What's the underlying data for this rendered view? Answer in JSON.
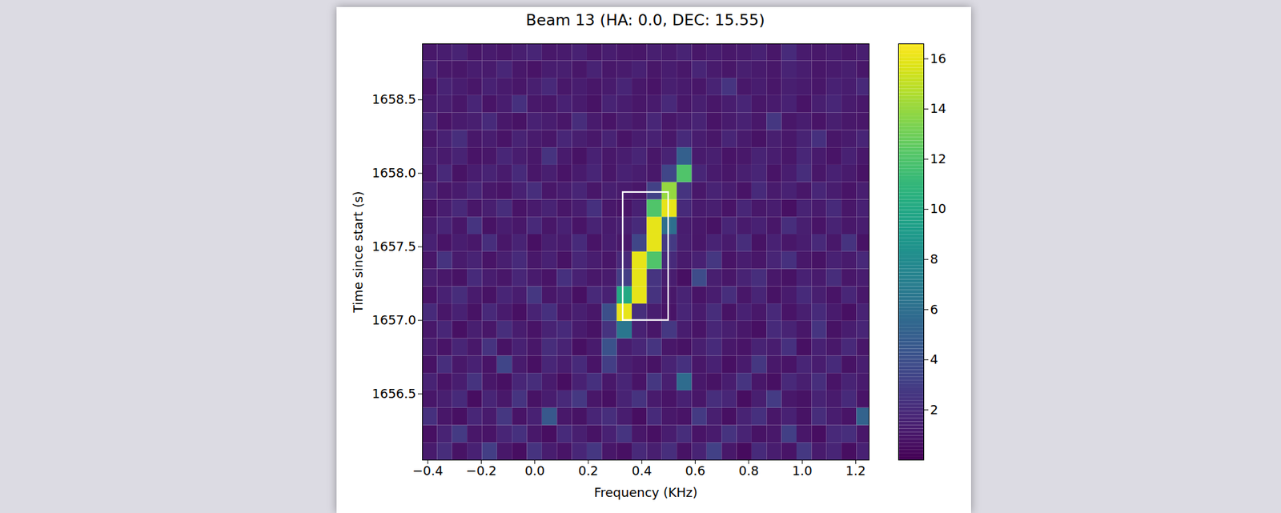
{
  "chart_data": {
    "type": "heatmap",
    "title": "Beam 13 (HA: 0.0, DEC: 15.55)",
    "x_label": "Frequency (KHz)",
    "y_label": "Time since start (s)",
    "xlim": [
      -0.42,
      1.25
    ],
    "ylim": [
      1656.05,
      1658.88
    ],
    "xticks": [
      {
        "value": -0.4,
        "label": "−0.4"
      },
      {
        "value": -0.2,
        "label": "−0.2"
      },
      {
        "value": 0,
        "label": "0.0"
      },
      0.2,
      0.4,
      0.6,
      0.8,
      {
        "value": 1,
        "label": "1.0"
      },
      1.2
    ],
    "yticks": [
      1656.5,
      {
        "value": 1657,
        "label": "1657.0"
      },
      1657.5,
      {
        "value": 1658,
        "label": "1658.0"
      },
      1658.5
    ],
    "color": "viridis",
    "colorbar": {
      "range": [
        0,
        16.6
      ],
      "ticks": [
        2,
        4,
        6,
        8,
        10,
        12,
        14,
        16
      ]
    },
    "box": {
      "x": [
        0.33,
        0.5
      ],
      "y": [
        1657.0,
        1657.87
      ],
      "color": "#ffffff"
    },
    "cells": {
      "x": [
        -0.392,
        -0.336,
        -0.28,
        -0.224,
        -0.168,
        -0.112,
        -0.056,
        0,
        0.056,
        0.112,
        0.168,
        0.224,
        0.28,
        0.336,
        0.392,
        0.448,
        0.504,
        0.56,
        0.616,
        0.672,
        0.728,
        0.784,
        0.84,
        0.896,
        0.952,
        1.008,
        1.064,
        1.12,
        1.176,
        1.232
      ],
      "y": [
        1656.109,
        1656.227,
        1656.345,
        1656.463,
        1656.581,
        1656.699,
        1656.817,
        1656.935,
        1657.053,
        1657.171,
        1657.289,
        1657.407,
        1657.525,
        1657.643,
        1657.761,
        1657.879,
        1657.997,
        1658.115,
        1658.233,
        1658.351,
        1658.469,
        1658.587,
        1658.705,
        1658.823
      ],
      "values": [
        [
          1.2,
          2.1,
          0.8,
          1.5,
          3.0,
          1.1,
          0.6,
          2.4,
          1.3,
          0.9,
          1.8,
          2.6,
          1.0,
          0.7,
          1.9,
          1.4,
          2.2,
          0.8,
          1.6,
          3.2,
          1.1,
          0.5,
          2.0,
          1.3,
          0.9,
          2.7,
          1.2,
          1.7,
          0.6,
          1.5
        ],
        [
          0.7,
          1.6,
          2.8,
          1.0,
          0.9,
          1.7,
          2.3,
          1.1,
          0.6,
          2.0,
          1.4,
          0.8,
          1.5,
          2.5,
          1.0,
          0.7,
          1.3,
          2.1,
          0.9,
          1.2,
          2.4,
          1.6,
          0.8,
          1.1,
          3.1,
          1.0,
          0.6,
          1.9,
          2.2,
          1.0
        ],
        [
          2.3,
          1.0,
          0.7,
          1.8,
          1.2,
          2.6,
          0.9,
          1.5,
          4.5,
          1.1,
          0.8,
          1.7,
          2.2,
          1.3,
          0.6,
          2.0,
          1.1,
          0.9,
          2.8,
          1.4,
          0.7,
          1.6,
          2.3,
          1.0,
          1.5,
          0.8,
          2.1,
          1.3,
          0.9,
          5.2
        ],
        [
          1.0,
          1.4,
          2.0,
          0.6,
          1.7,
          1.1,
          2.5,
          0.8,
          1.3,
          1.9,
          2.7,
          1.0,
          0.7,
          1.6,
          2.4,
          1.2,
          0.9,
          1.5,
          1.0,
          2.2,
          1.8,
          0.6,
          1.4,
          2.9,
          1.1,
          0.8,
          1.6,
          1.2,
          2.0,
          0.9
        ],
        [
          1.6,
          0.9,
          1.3,
          2.4,
          1.0,
          0.7,
          1.8,
          2.1,
          1.2,
          0.6,
          1.5,
          2.3,
          1.1,
          1.7,
          0.9,
          2.6,
          1.4,
          5.8,
          1.1,
          0.8,
          1.3,
          2.5,
          1.0,
          0.7,
          1.9,
          1.4,
          2.2,
          0.9,
          1.6,
          1.2
        ],
        [
          0.8,
          2.2,
          1.1,
          1.5,
          0.9,
          3.4,
          1.2,
          0.7,
          1.8,
          1.3,
          2.0,
          0.9,
          3.0,
          1.4,
          1.1,
          0.8,
          1.6,
          2.3,
          1.0,
          1.5,
          0.7,
          1.2,
          2.6,
          1.1,
          0.9,
          1.7,
          1.3,
          2.0,
          0.8,
          1.4
        ],
        [
          1.3,
          0.9,
          1.7,
          1.1,
          2.4,
          0.8,
          1.5,
          1.0,
          2.1,
          1.6,
          0.7,
          1.2,
          4.2,
          1.3,
          1.8,
          2.5,
          1.0,
          0.8,
          1.4,
          2.0,
          1.1,
          0.9,
          1.6,
          1.3,
          2.3,
          0.7,
          1.5,
          1.1,
          1.9,
          1.0
        ],
        [
          1.1,
          1.8,
          0.7,
          1.4,
          1.0,
          2.2,
          1.3,
          0.9,
          1.6,
          2.0,
          1.2,
          0.8,
          2.4,
          6.5,
          1.5,
          1.0,
          2.7,
          1.3,
          0.9,
          1.8,
          1.4,
          1.1,
          0.7,
          2.0,
          1.6,
          1.0,
          2.5,
          0.8,
          1.3,
          1.7
        ],
        [
          2.0,
          1.0,
          1.5,
          0.8,
          1.9,
          1.2,
          0.7,
          1.6,
          2.3,
          1.1,
          1.4,
          1.0,
          4.0,
          16,
          2.2,
          1.3,
          0.9,
          1.7,
          1.2,
          2.1,
          0.8,
          1.5,
          1.1,
          1.9,
          0.9,
          1.4,
          2.0,
          1.2,
          0.7,
          1.6
        ],
        [
          0.9,
          1.5,
          2.1,
          1.2,
          0.8,
          1.7,
          1.3,
          2.6,
          1.0,
          1.4,
          0.7,
          1.9,
          1.5,
          10,
          16,
          2.4,
          1.1,
          1.6,
          0.9,
          1.3,
          2.2,
          1.0,
          1.7,
          0.8,
          1.2,
          2.0,
          1.4,
          0.9,
          1.8,
          1.1
        ],
        [
          1.4,
          1.1,
          0.8,
          2.0,
          1.3,
          1.0,
          1.8,
          1.2,
          0.9,
          2.3,
          1.5,
          1.1,
          1.2,
          3.0,
          16,
          2.5,
          1.3,
          0.7,
          3.8,
          1.4,
          1.0,
          1.6,
          2.2,
          1.1,
          0.8,
          1.5,
          1.2,
          2.1,
          1.0,
          1.3
        ],
        [
          1.0,
          2.4,
          1.2,
          1.6,
          0.9,
          1.4,
          2.0,
          1.1,
          1.5,
          0.8,
          1.8,
          1.3,
          1.0,
          1.9,
          16,
          12,
          2.0,
          1.2,
          1.5,
          2.6,
          0.9,
          1.3,
          1.0,
          1.7,
          2.3,
          1.1,
          0.8,
          1.5,
          1.2,
          1.9
        ],
        [
          1.5,
          0.9,
          1.3,
          1.1,
          2.2,
          1.0,
          1.6,
          0.7,
          1.4,
          1.2,
          2.0,
          0.9,
          1.3,
          1.1,
          3.5,
          16,
          2.8,
          1.4,
          1.0,
          1.6,
          1.2,
          2.1,
          0.8,
          1.5,
          1.0,
          1.3,
          1.9,
          1.1,
          2.4,
          0.8
        ],
        [
          1.2,
          1.7,
          1.0,
          2.5,
          0.8,
          1.3,
          1.1,
          1.9,
          1.0,
          1.5,
          0.9,
          1.6,
          1.2,
          1.4,
          2.0,
          16,
          6.0,
          1.3,
          1.1,
          0.8,
          1.7,
          1.2,
          1.5,
          1.0,
          2.2,
          1.4,
          0.9,
          1.6,
          1.1,
          1.3
        ],
        [
          0.8,
          1.3,
          1.9,
          1.0,
          1.4,
          2.1,
          0.9,
          1.2,
          1.6,
          1.0,
          1.3,
          2.3,
          1.1,
          0.9,
          1.5,
          12,
          16,
          2.0,
          1.2,
          1.4,
          0.9,
          1.8,
          1.1,
          1.3,
          0.7,
          1.6,
          1.2,
          2.0,
          1.0,
          1.5
        ],
        [
          1.6,
          1.0,
          1.2,
          1.8,
          1.1,
          0.9,
          1.5,
          2.2,
          1.0,
          1.3,
          1.7,
          1.0,
          1.4,
          1.2,
          1.0,
          3.2,
          14,
          2.5,
          1.1,
          1.6,
          1.3,
          0.9,
          2.0,
          1.2,
          1.5,
          1.0,
          1.8,
          1.3,
          0.9,
          1.4
        ],
        [
          1.1,
          1.9,
          0.8,
          1.3,
          1.6,
          1.2,
          2.0,
          1.0,
          1.4,
          0.9,
          1.2,
          1.7,
          1.0,
          1.5,
          1.3,
          1.1,
          3.5,
          12,
          1.8,
          1.2,
          1.0,
          1.4,
          1.7,
          0.9,
          1.3,
          2.1,
          1.0,
          1.5,
          1.2,
          0.8
        ],
        [
          1.4,
          1.2,
          1.6,
          0.9,
          1.0,
          1.8,
          1.3,
          1.1,
          2.4,
          1.2,
          0.8,
          1.5,
          1.1,
          1.3,
          1.7,
          1.0,
          1.6,
          5.0,
          1.2,
          1.4,
          0.9,
          1.1,
          1.6,
          1.3,
          1.0,
          1.8,
          1.2,
          0.9,
          1.5,
          1.1
        ],
        [
          1.0,
          1.5,
          2.2,
          1.1,
          1.3,
          0.9,
          1.6,
          1.2,
          1.0,
          1.8,
          1.4,
          1.1,
          1.6,
          0.9,
          1.3,
          1.5,
          1.1,
          2.0,
          1.3,
          1.0,
          1.7,
          1.2,
          0.8,
          1.4,
          1.1,
          1.6,
          2.3,
          1.0,
          1.2,
          1.7
        ],
        [
          1.7,
          0.9,
          1.2,
          1.4,
          2.0,
          1.1,
          0.8,
          1.5,
          1.3,
          1.0,
          2.1,
          1.2,
          0.9,
          1.4,
          1.1,
          1.8,
          1.0,
          1.3,
          1.6,
          0.9,
          1.2,
          1.5,
          1.1,
          2.6,
          1.0,
          1.3,
          0.9,
          1.4,
          1.1,
          1.0
        ],
        [
          1.2,
          1.4,
          1.0,
          1.7,
          0.9,
          1.3,
          2.3,
          1.1,
          1.0,
          1.5,
          1.2,
          0.8,
          1.6,
          1.3,
          1.0,
          1.2,
          1.9,
          1.1,
          1.4,
          1.0,
          1.3,
          1.7,
          1.0,
          1.2,
          1.5,
          0.9,
          1.4,
          1.8,
          1.2,
          1.1
        ],
        [
          0.9,
          1.6,
          1.3,
          1.0,
          1.5,
          1.2,
          1.0,
          1.4,
          1.9,
          1.1,
          1.3,
          1.0,
          1.2,
          1.7,
          1.1,
          0.9,
          1.4,
          1.2,
          1.0,
          1.6,
          2.5,
          1.1,
          1.3,
          1.0,
          1.4,
          1.2,
          1.0,
          1.5,
          1.3,
          1.9
        ],
        [
          1.5,
          1.1,
          1.0,
          1.3,
          1.2,
          1.8,
          1.1,
          0.9,
          1.3,
          1.4,
          1.0,
          1.6,
          1.1,
          1.2,
          1.5,
          1.0,
          1.3,
          1.1,
          1.7,
          1.2,
          1.0,
          1.4,
          1.2,
          1.1,
          1.6,
          1.3,
          1.0,
          1.2,
          1.4,
          1.0
        ],
        [
          1.1,
          1.3,
          1.6,
          1.0,
          1.2,
          1.0,
          1.4,
          1.7,
          1.1,
          1.2,
          1.5,
          1.0,
          1.3,
          1.1,
          1.0,
          1.4,
          1.2,
          1.6,
          1.0,
          1.3,
          1.1,
          1.2,
          1.5,
          1.0,
          2.0,
          1.2,
          1.1,
          1.3,
          1.0,
          1.4
        ]
      ]
    }
  }
}
